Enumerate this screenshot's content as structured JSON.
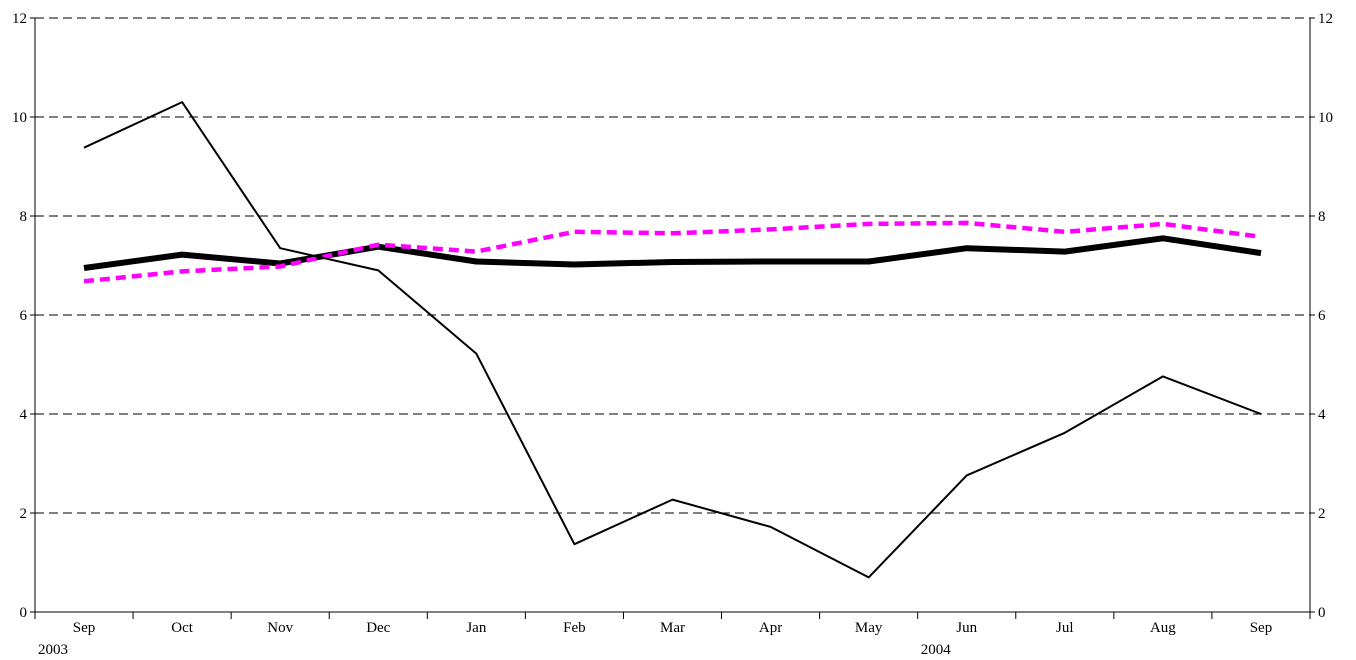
{
  "chart_data": {
    "type": "line",
    "categories": [
      "Sep",
      "Oct",
      "Nov",
      "Dec",
      "Jan",
      "Feb",
      "Mar",
      "Apr",
      "May",
      "Jun",
      "Jul",
      "Aug",
      "Sep"
    ],
    "year_labels": [
      {
        "index": 0,
        "label": "2003"
      },
      {
        "index": 9,
        "label": "2004"
      }
    ],
    "ylim": [
      0,
      12
    ],
    "yticks": [
      0,
      2,
      4,
      6,
      8,
      10,
      12
    ],
    "secondary_yticks": [
      0,
      2,
      4,
      6,
      8,
      10,
      12
    ],
    "grid": "horizontal-dashed",
    "legend": "none",
    "series": [
      {
        "style": "thick-solid",
        "color": "#000000",
        "values": [
          6.95,
          7.22,
          7.04,
          7.38,
          7.08,
          7.02,
          7.07,
          7.08,
          7.08,
          7.35,
          7.28,
          7.55,
          7.25
        ]
      },
      {
        "style": "dashed",
        "color": "#ff00ff",
        "values": [
          6.68,
          6.88,
          6.98,
          7.42,
          7.28,
          7.68,
          7.65,
          7.73,
          7.84,
          7.86,
          7.68,
          7.84,
          7.58
        ]
      },
      {
        "style": "thin-solid",
        "color": "#000000",
        "values": [
          9.38,
          10.3,
          7.35,
          6.9,
          5.22,
          1.37,
          2.27,
          1.72,
          0.7,
          2.76,
          3.62,
          4.76,
          4.0
        ]
      }
    ]
  }
}
